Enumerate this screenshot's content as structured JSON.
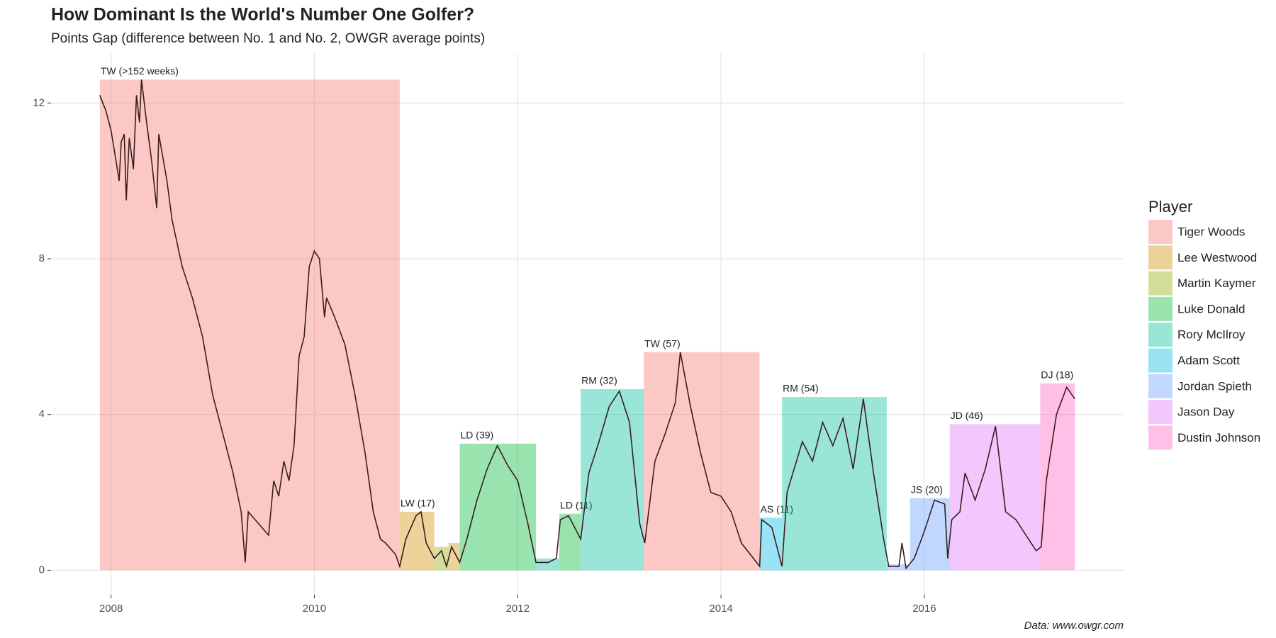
{
  "chart_data": {
    "type": "combo",
    "title": "How Dominant Is the World's Number One Golfer?",
    "subtitle": "Points Gap (difference between No. 1 and No. 2, OWGR average points)",
    "caption": "Data: www.owgr.com",
    "legend_title": "Player",
    "grid": true,
    "xlim": [
      2007.41,
      2017.96
    ],
    "ylim": [
      -0.63,
      13.28
    ],
    "xticks": [
      2008,
      2010,
      2012,
      2014,
      2016
    ],
    "yticks": [
      0,
      4,
      8,
      12
    ],
    "players": [
      {
        "name": "Tiger Woods",
        "color": "#F8766D"
      },
      {
        "name": "Lee Westwood",
        "color": "#D39200"
      },
      {
        "name": "Martin Kaymer",
        "color": "#93AA00"
      },
      {
        "name": "Luke Donald",
        "color": "#00BA38"
      },
      {
        "name": "Rory McIlroy",
        "color": "#00C19F"
      },
      {
        "name": "Adam Scott",
        "color": "#00B9E3"
      },
      {
        "name": "Jordan Spieth",
        "color": "#619CFF"
      },
      {
        "name": "Jason Day",
        "color": "#DB72FB"
      },
      {
        "name": "Dustin Johnson",
        "color": "#FF61C3"
      }
    ],
    "reigns": [
      {
        "player": 0,
        "start": 2007.89,
        "end": 2010.84,
        "gap": 12.6,
        "label": "TW (>152 weeks)"
      },
      {
        "player": 1,
        "start": 2010.84,
        "end": 2011.18,
        "gap": 1.5,
        "label": "LW (17)"
      },
      {
        "player": 2,
        "start": 2011.18,
        "end": 2011.32,
        "gap": 0.6
      },
      {
        "player": 1,
        "start": 2011.32,
        "end": 2011.43,
        "gap": 0.7
      },
      {
        "player": 3,
        "start": 2011.43,
        "end": 2012.18,
        "gap": 3.25,
        "label": "LD (39)"
      },
      {
        "player": 4,
        "start": 2012.18,
        "end": 2012.41,
        "gap": 0.3
      },
      {
        "player": 3,
        "start": 2012.41,
        "end": 2012.62,
        "gap": 1.45,
        "label": "LD (11)"
      },
      {
        "player": 4,
        "start": 2012.62,
        "end": 2013.24,
        "gap": 4.65,
        "label": "RM (32)"
      },
      {
        "player": 0,
        "start": 2013.24,
        "end": 2014.38,
        "gap": 5.6,
        "label": "TW (57)"
      },
      {
        "player": 5,
        "start": 2014.38,
        "end": 2014.6,
        "gap": 1.35,
        "label": "AS (11)"
      },
      {
        "player": 4,
        "start": 2014.6,
        "end": 2015.63,
        "gap": 4.45,
        "label": "RM (54)"
      },
      {
        "player": 6,
        "start": 2015.63,
        "end": 2015.86,
        "gap": 0.15
      },
      {
        "player": 6,
        "start": 2015.86,
        "end": 2016.25,
        "gap": 1.85,
        "label": "JS (20)"
      },
      {
        "player": 7,
        "start": 2016.25,
        "end": 2017.14,
        "gap": 3.75,
        "label": "JD (46)"
      },
      {
        "player": 8,
        "start": 2017.14,
        "end": 2017.48,
        "gap": 4.8,
        "label": "DJ (18)"
      }
    ],
    "line": {
      "color": "#3a1e1e",
      "x": [
        2007.89,
        2007.95,
        2008.0,
        2008.05,
        2008.08,
        2008.1,
        2008.13,
        2008.15,
        2008.18,
        2008.22,
        2008.25,
        2008.28,
        2008.3,
        2008.35,
        2008.4,
        2008.45,
        2008.47,
        2008.55,
        2008.6,
        2008.7,
        2008.8,
        2008.9,
        2009.0,
        2009.1,
        2009.2,
        2009.28,
        2009.32,
        2009.35,
        2009.45,
        2009.55,
        2009.6,
        2009.65,
        2009.7,
        2009.75,
        2009.8,
        2009.85,
        2009.9,
        2009.95,
        2010.0,
        2010.05,
        2010.1,
        2010.12,
        2010.2,
        2010.3,
        2010.4,
        2010.5,
        2010.58,
        2010.65,
        2010.7,
        2010.8,
        2010.84,
        2010.9,
        2011.0,
        2011.05,
        2011.1,
        2011.18,
        2011.25,
        2011.3,
        2011.35,
        2011.43,
        2011.5,
        2011.6,
        2011.7,
        2011.8,
        2011.9,
        2012.0,
        2012.1,
        2012.18,
        2012.3,
        2012.38,
        2012.42,
        2012.5,
        2012.62,
        2012.7,
        2012.8,
        2012.9,
        2013.0,
        2013.1,
        2013.2,
        2013.25,
        2013.35,
        2013.45,
        2013.55,
        2013.6,
        2013.7,
        2013.8,
        2013.9,
        2014.0,
        2014.1,
        2014.2,
        2014.38,
        2014.4,
        2014.5,
        2014.6,
        2014.65,
        2014.8,
        2014.9,
        2015.0,
        2015.1,
        2015.2,
        2015.3,
        2015.4,
        2015.5,
        2015.6,
        2015.65,
        2015.75,
        2015.78,
        2015.82,
        2015.9,
        2016.0,
        2016.1,
        2016.2,
        2016.23,
        2016.27,
        2016.35,
        2016.4,
        2016.5,
        2016.6,
        2016.7,
        2016.8,
        2016.9,
        2017.0,
        2017.1,
        2017.15,
        2017.2,
        2017.3,
        2017.4,
        2017.48
      ],
      "y": [
        12.2,
        11.8,
        11.3,
        10.5,
        10.0,
        11.0,
        11.2,
        9.5,
        11.1,
        10.3,
        12.2,
        11.5,
        12.6,
        11.5,
        10.5,
        9.3,
        11.2,
        10.0,
        9.0,
        7.8,
        7.0,
        6.0,
        4.5,
        3.5,
        2.5,
        1.5,
        0.2,
        1.5,
        1.2,
        0.9,
        2.3,
        1.9,
        2.8,
        2.3,
        3.2,
        5.5,
        6.0,
        7.8,
        8.2,
        8.0,
        6.5,
        7.0,
        6.5,
        5.8,
        4.5,
        3.0,
        1.5,
        0.8,
        0.7,
        0.4,
        0.1,
        0.8,
        1.4,
        1.5,
        0.7,
        0.3,
        0.5,
        0.1,
        0.6,
        0.2,
        0.8,
        1.8,
        2.6,
        3.2,
        2.7,
        2.3,
        1.2,
        0.2,
        0.2,
        0.3,
        1.3,
        1.4,
        0.8,
        2.5,
        3.3,
        4.2,
        4.6,
        3.8,
        1.2,
        0.7,
        2.8,
        3.5,
        4.3,
        5.6,
        4.2,
        3.0,
        2.0,
        1.9,
        1.5,
        0.7,
        0.1,
        1.3,
        1.1,
        0.1,
        2.0,
        3.3,
        2.8,
        3.8,
        3.2,
        3.9,
        2.6,
        4.4,
        2.5,
        0.8,
        0.1,
        0.1,
        0.7,
        0.05,
        0.3,
        1.0,
        1.8,
        1.7,
        0.3,
        1.3,
        1.5,
        2.5,
        1.8,
        2.6,
        3.7,
        1.5,
        1.3,
        0.9,
        0.5,
        0.6,
        2.3,
        4.0,
        4.7,
        4.4
      ]
    }
  }
}
